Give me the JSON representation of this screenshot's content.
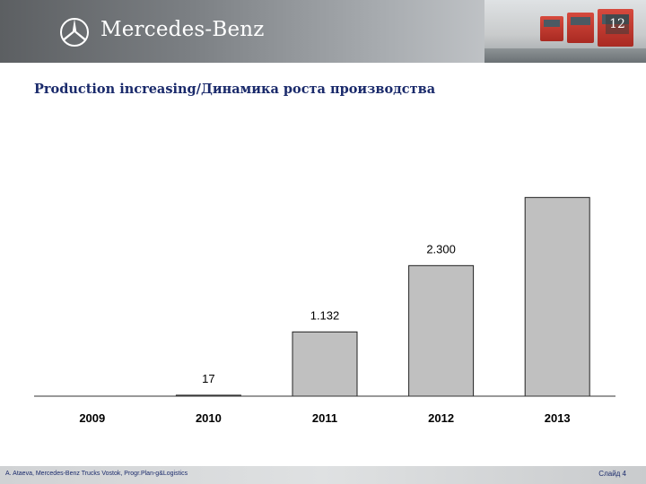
{
  "header": {
    "brand": "Mercedes-Benz",
    "slide_number": "12",
    "brand_color": "#ffffff"
  },
  "slide": {
    "title": "Production increasing/Динамика роста производства"
  },
  "chart_data": {
    "type": "bar",
    "title": "Production increasing/Динамика роста производства",
    "categories": [
      "2009",
      "2010",
      "2011",
      "2012",
      "2013"
    ],
    "values": [
      0,
      17,
      1132,
      2300,
      3500
    ],
    "data_labels": [
      "",
      "17",
      "1.132",
      "2.300",
      ""
    ],
    "xlabel": "",
    "ylabel": "",
    "ylim": [
      0,
      3600
    ],
    "grid": false,
    "bar_color": "#c0c0c0",
    "axis_color": "#333333"
  },
  "footer": {
    "left_text": "A. Ataeva, Mercedes-Benz Trucks Vostok, Progr.Plan-g&Logistics",
    "right_text": "Слайд 4"
  }
}
